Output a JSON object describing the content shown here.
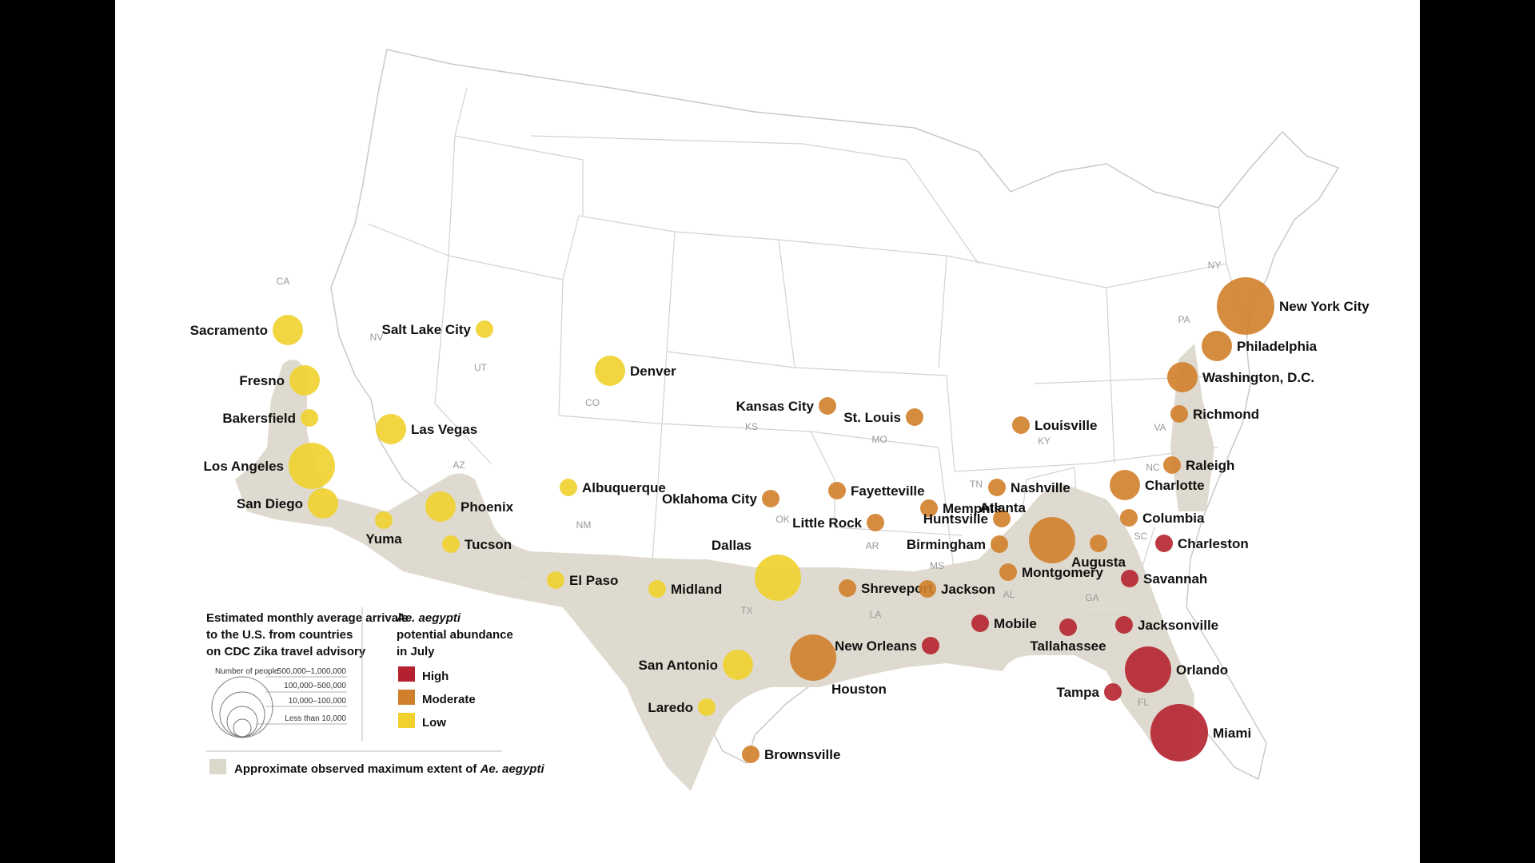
{
  "colors": {
    "high": "#b5222f",
    "moderate": "#d07f2a",
    "low": "#f0d12e",
    "extent": "#dcd7cb",
    "border": "#c9c9c9"
  },
  "states": [
    {
      "abbr": "CA"
    },
    {
      "abbr": "NV"
    },
    {
      "abbr": "UT"
    },
    {
      "abbr": "AZ"
    },
    {
      "abbr": "CO"
    },
    {
      "abbr": "NM"
    },
    {
      "abbr": "KS"
    },
    {
      "abbr": "OK"
    },
    {
      "abbr": "TX"
    },
    {
      "abbr": "MO"
    },
    {
      "abbr": "AR"
    },
    {
      "abbr": "LA"
    },
    {
      "abbr": "TN"
    },
    {
      "abbr": "MS"
    },
    {
      "abbr": "AL"
    },
    {
      "abbr": "GA"
    },
    {
      "abbr": "FL"
    },
    {
      "abbr": "SC"
    },
    {
      "abbr": "NC"
    },
    {
      "abbr": "VA"
    },
    {
      "abbr": "KY"
    },
    {
      "abbr": "PA"
    },
    {
      "abbr": "NY"
    }
  ],
  "cities": [
    {
      "name": "Sacramento",
      "level": "low",
      "size": 2
    },
    {
      "name": "Fresno",
      "level": "low",
      "size": 2
    },
    {
      "name": "Bakersfield",
      "level": "low",
      "size": 1
    },
    {
      "name": "Los Angeles",
      "level": "low",
      "size": 3
    },
    {
      "name": "San Diego",
      "level": "low",
      "size": 2
    },
    {
      "name": "Yuma",
      "level": "low",
      "size": 1
    },
    {
      "name": "Las Vegas",
      "level": "low",
      "size": 2
    },
    {
      "name": "Salt Lake City",
      "level": "low",
      "size": 1
    },
    {
      "name": "Phoenix",
      "level": "low",
      "size": 2
    },
    {
      "name": "Tucson",
      "level": "low",
      "size": 1
    },
    {
      "name": "Denver",
      "level": "low",
      "size": 2
    },
    {
      "name": "Albuquerque",
      "level": "low",
      "size": 1
    },
    {
      "name": "El Paso",
      "level": "low",
      "size": 1
    },
    {
      "name": "Midland",
      "level": "low",
      "size": 1
    },
    {
      "name": "Dallas",
      "level": "low",
      "size": 3
    },
    {
      "name": "San Antonio",
      "level": "low",
      "size": 2
    },
    {
      "name": "Laredo",
      "level": "low",
      "size": 1
    },
    {
      "name": "Kansas City",
      "level": "moderate",
      "size": 1
    },
    {
      "name": "St. Louis",
      "level": "moderate",
      "size": 1
    },
    {
      "name": "Louisville",
      "level": "moderate",
      "size": 1
    },
    {
      "name": "Oklahoma City",
      "level": "moderate",
      "size": 1
    },
    {
      "name": "Fayetteville",
      "level": "moderate",
      "size": 1
    },
    {
      "name": "Little Rock",
      "level": "moderate",
      "size": 1
    },
    {
      "name": "Memphis",
      "level": "moderate",
      "size": 1
    },
    {
      "name": "Nashville",
      "level": "moderate",
      "size": 1
    },
    {
      "name": "Huntsville",
      "level": "moderate",
      "size": 1
    },
    {
      "name": "Birmingham",
      "level": "moderate",
      "size": 1
    },
    {
      "name": "Atlanta",
      "level": "moderate",
      "size": 3
    },
    {
      "name": "Augusta",
      "level": "moderate",
      "size": 1
    },
    {
      "name": "Charlotte",
      "level": "moderate",
      "size": 2
    },
    {
      "name": "Columbia",
      "level": "moderate",
      "size": 1
    },
    {
      "name": "Raleigh",
      "level": "moderate",
      "size": 1
    },
    {
      "name": "Richmond",
      "level": "moderate",
      "size": 1
    },
    {
      "name": "Washington, D.C.",
      "level": "moderate",
      "size": 2
    },
    {
      "name": "Philadelphia",
      "level": "moderate",
      "size": 2
    },
    {
      "name": "New York City",
      "level": "moderate",
      "size": 4
    },
    {
      "name": "Shreveport",
      "level": "moderate",
      "size": 1
    },
    {
      "name": "Jackson",
      "level": "moderate",
      "size": 1
    },
    {
      "name": "Montgomery",
      "level": "moderate",
      "size": 1
    },
    {
      "name": "Houston",
      "level": "moderate",
      "size": 3
    },
    {
      "name": "Brownsville",
      "level": "moderate",
      "size": 1
    },
    {
      "name": "Charleston",
      "level": "high",
      "size": 1
    },
    {
      "name": "Savannah",
      "level": "high",
      "size": 1
    },
    {
      "name": "Jacksonville",
      "level": "high",
      "size": 1
    },
    {
      "name": "Mobile",
      "level": "high",
      "size": 1
    },
    {
      "name": "Tallahassee",
      "level": "high",
      "size": 1
    },
    {
      "name": "New Orleans",
      "level": "high",
      "size": 1
    },
    {
      "name": "Orlando",
      "level": "high",
      "size": 3
    },
    {
      "name": "Tampa",
      "level": "high",
      "size": 1
    },
    {
      "name": "Miami",
      "level": "high",
      "size": 4
    }
  ],
  "legend": {
    "arrivals_title": [
      "Estimated monthly average arrivals",
      "to the U.S. from countries",
      "on CDC Zika travel advisory"
    ],
    "number_of_people": "Number of people",
    "size_classes": [
      "500,000–1,000,000",
      "100,000–500,000",
      "10,000–100,000",
      "Less than 10,000"
    ],
    "abundance_title_italic": "Ae. aegypti",
    "abundance_title_rest": [
      "potential abundance",
      "in July"
    ],
    "levels": [
      {
        "key": "high",
        "label": "High"
      },
      {
        "key": "moderate",
        "label": "Moderate"
      },
      {
        "key": "low",
        "label": "Low"
      }
    ],
    "extent_prefix": "Approximate observed maximum extent of ",
    "extent_italic": "Ae. aegypti"
  }
}
